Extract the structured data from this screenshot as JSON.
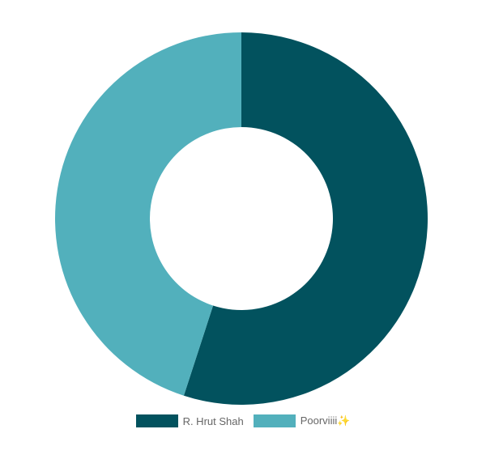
{
  "chart_data": {
    "type": "pie",
    "variant": "doughnut",
    "title": "",
    "labels": [
      "R. Hrut Shah",
      "Poorviiii✨"
    ],
    "values": [
      55,
      45
    ],
    "colors": [
      "#02525e",
      "#52b0bc"
    ],
    "legend_position": "bottom",
    "grid": false
  },
  "legend": {
    "items": [
      {
        "label": "R. Hrut Shah",
        "color": "#02525e"
      },
      {
        "label": "Poorviiii✨",
        "color": "#52b0bc"
      }
    ]
  }
}
